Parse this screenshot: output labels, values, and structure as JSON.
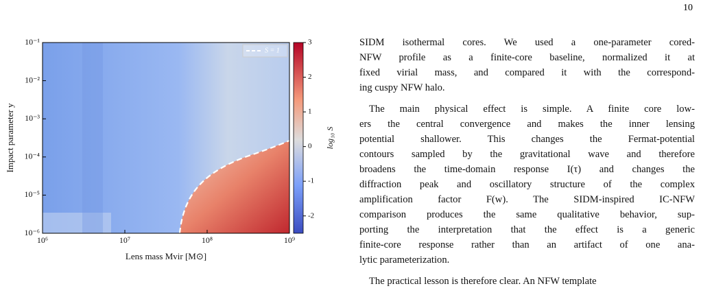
{
  "page_number": "10",
  "chart_data": {
    "type": "heatmap",
    "x_label": "Lens mass Mvir [M⊙]",
    "y_label": "Impact parameter y",
    "xscale": "log",
    "yscale": "log",
    "xlim": [
      1000000,
      1000000000
    ],
    "ylim": [
      1e-06,
      0.1
    ],
    "xticks": [
      {
        "value": 1000000,
        "label": "10⁶"
      },
      {
        "value": 10000000,
        "label": "10⁷"
      },
      {
        "value": 100000000,
        "label": "10⁸"
      },
      {
        "value": 1000000000,
        "label": "10⁹"
      }
    ],
    "yticks": [
      {
        "value": 1e-06,
        "label": "10⁻⁶"
      },
      {
        "value": 1e-05,
        "label": "10⁻⁵"
      },
      {
        "value": 0.0001,
        "label": "10⁻⁴"
      },
      {
        "value": 0.001,
        "label": "10⁻³"
      },
      {
        "value": 0.01,
        "label": "10⁻²"
      },
      {
        "value": 0.1,
        "label": "10⁻¹"
      }
    ],
    "colorbar_label": "log₁₀ S",
    "clim": [
      -2.5,
      3
    ],
    "cticks": [
      -2,
      -1,
      0,
      1,
      2,
      3
    ],
    "colormap": "coolwarm",
    "legend": "S = 1",
    "legend_position": "upper right"
  },
  "paragraphs": [
    [
      "SIDM isothermal cores. We used a one-parameter cored-",
      "NFW profile as a finite-core baseline, normalized it at",
      "fixed virial mass, and compared it with the correspond-",
      "ing cuspy NFW halo."
    ],
    [
      "The main physical effect is simple. A finite core low-",
      "ers the central convergence and makes the inner lensing",
      "potential shallower. This changes the Fermat-potential",
      "contours sampled by the gravitational wave and therefore",
      "broadens the time-domain response I(τ) and changes the",
      "diffraction peak and oscillatory structure of the complex",
      "amplification factor F(w). The SIDM-inspired IC-NFW",
      "comparison produces the same qualitative behavior, sup-",
      "porting the interpretation that the effect is a generic",
      "finite-core response rather than an artifact of one ana-",
      "lytic parameterization."
    ],
    [
      "The practical lesson is therefore clear. An NFW template"
    ]
  ]
}
